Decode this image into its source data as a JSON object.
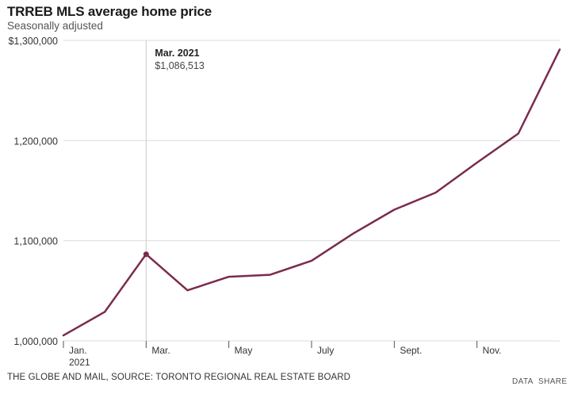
{
  "header": {
    "title": "TRREB MLS average home price",
    "subtitle": "Seasonally adjusted"
  },
  "footer": {
    "source": "THE GLOBE AND MAIL, SOURCE: TORONTO REGIONAL REAL ESTATE BOARD",
    "data_label": "DATA",
    "share_label": "SHARE"
  },
  "colors": {
    "line": "#7b2b4f",
    "grid": "#dddddd",
    "axis_text": "#333333",
    "crosshair": "#cccccc"
  },
  "chart_data": {
    "type": "line",
    "title": "TRREB MLS average home price",
    "subtitle": "Seasonally adjusted",
    "xlabel": "",
    "ylabel": "",
    "x": [
      "Jan. 2021",
      "Feb. 2021",
      "Mar. 2021",
      "Apr. 2021",
      "May 2021",
      "Jun. 2021",
      "Jul. 2021",
      "Aug. 2021",
      "Sep. 2021",
      "Oct. 2021",
      "Nov. 2021",
      "Dec. 2021",
      "Jan. 2022"
    ],
    "series": [
      {
        "values": [
          1005500,
          1029000,
          1086513,
          1050500,
          1064000,
          1066000,
          1080000,
          1107000,
          1131000,
          1148000,
          1178000,
          1207000,
          1291000
        ]
      }
    ],
    "ylim": [
      1000000,
      1300000
    ],
    "yticks": [
      {
        "value": 1000000,
        "label": "1,000,000"
      },
      {
        "value": 1100000,
        "label": "1,100,000"
      },
      {
        "value": 1200000,
        "label": "1,200,000"
      },
      {
        "value": 1300000,
        "label": "$1,300,000"
      }
    ],
    "xticks": [
      {
        "index": 0,
        "label": "Jan.",
        "sublabel": "2021"
      },
      {
        "index": 2,
        "label": "Mar.",
        "sublabel": ""
      },
      {
        "index": 4,
        "label": "May",
        "sublabel": ""
      },
      {
        "index": 6,
        "label": "July",
        "sublabel": ""
      },
      {
        "index": 8,
        "label": "Sept.",
        "sublabel": ""
      },
      {
        "index": 10,
        "label": "Nov.",
        "sublabel": ""
      }
    ],
    "grid": true,
    "legend": "none",
    "annotation": {
      "index": 2,
      "label": "Mar. 2021",
      "value_label": "$1,086,513"
    }
  }
}
